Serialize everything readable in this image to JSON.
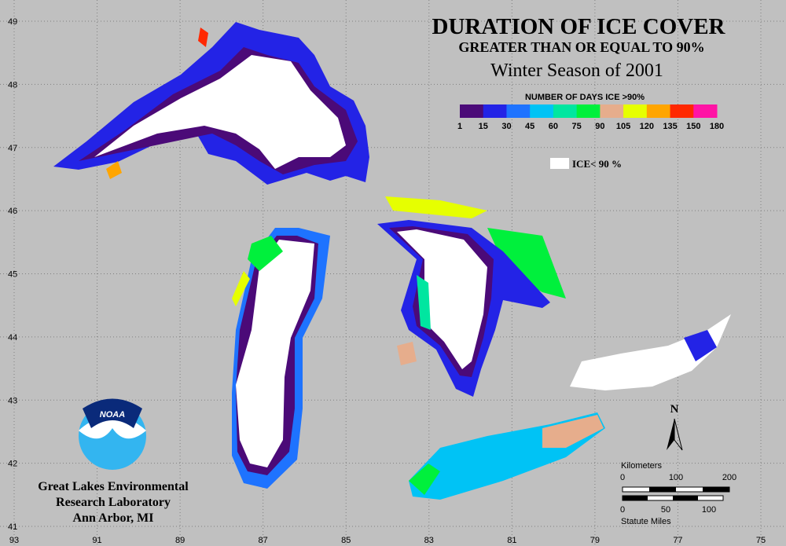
{
  "title": "DURATION OF ICE COVER",
  "subtitle": "GREATER THAN OR EQUAL TO 90%",
  "season": "Winter Season of 2001",
  "legend": {
    "title": "NUMBER OF DAYS ICE >90%",
    "colors": [
      "#4b0a78",
      "#2323e6",
      "#1e73ff",
      "#00c3f5",
      "#00e6a0",
      "#00f03c",
      "#e6ad8c",
      "#e6ff00",
      "#ffa500",
      "#ff2800",
      "#ff14a5"
    ],
    "labels": [
      "1",
      "15",
      "30",
      "45",
      "60",
      "75",
      "90",
      "105",
      "120",
      "135",
      "150",
      "180"
    ],
    "no_ice_label": "ICE< 90 %"
  },
  "latitudes": [
    49,
    48,
    47,
    46,
    45,
    44,
    43,
    42,
    41
  ],
  "longitudes": [
    93,
    91,
    89,
    87,
    85,
    83,
    81,
    79,
    77,
    75
  ],
  "noaa": "NOAA",
  "org": [
    "Great Lakes Environmental",
    "Research Laboratory",
    "Ann Arbor, MI"
  ],
  "north": "N",
  "scale": {
    "km_title": "Kilometers",
    "km_labels": [
      "0",
      "100",
      "200"
    ],
    "mi_labels": [
      "0",
      "50",
      "100"
    ],
    "mi_title": "Statute Miles"
  }
}
